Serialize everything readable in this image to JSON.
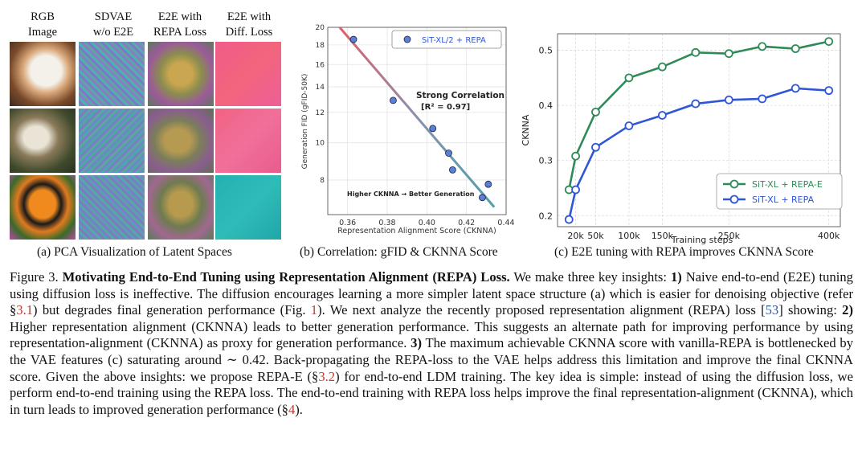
{
  "panel_a": {
    "headers": [
      {
        "line1": "RGB",
        "line2": "Image"
      },
      {
        "line1": "SDVAE",
        "line2": "w/o E2E"
      },
      {
        "line1": "E2E with",
        "line2": "REPA Loss"
      },
      {
        "line1": "E2E with",
        "line2": "Diff. Loss"
      }
    ],
    "caption": "(a) PCA Visualization of Latent Spaces"
  },
  "panel_b": {
    "caption": "(b) Correlation: gFID & CKNNA Score",
    "annotation_title": "Strong Correlation",
    "annotation_r2": "[R² = 0.97]",
    "annotation_bottom": "Higher CKNNA → Better Generation"
  },
  "panel_c": {
    "caption": "(c) E2E tuning with REPA improves CKNNA Score"
  },
  "chart_data": [
    {
      "type": "scatter",
      "xlabel": "Representation Alignment Score (CKNNA)",
      "ylabel": "Generation FID (gFID-50K)",
      "xlim": [
        0.35,
        0.44
      ],
      "ylim": [
        6.5,
        20
      ],
      "y_scale": "log",
      "x_ticks": [
        "0.36",
        "0.38",
        "0.40",
        "0.42",
        "0.44"
      ],
      "y_ticks": [
        "8",
        "10",
        "12",
        "14",
        "16",
        "18",
        "20"
      ],
      "series": [
        {
          "name": "SiT-XL/2 + REPA",
          "color": "#5b7fd6",
          "x": [
            0.363,
            0.383,
            0.403,
            0.411,
            0.413,
            0.428,
            0.431
          ],
          "y": [
            18.6,
            12.9,
            10.9,
            9.4,
            8.5,
            7.2,
            7.8
          ]
        }
      ],
      "fit_line": {
        "x": [
          0.356,
          0.434
        ],
        "y": [
          20.0,
          6.8
        ]
      },
      "legend": "top-right",
      "grid": true
    },
    {
      "type": "line",
      "xlabel": "Training steps",
      "ylabel": "CKNNA",
      "x": [
        10000,
        20000,
        30000,
        50000,
        100000,
        150000,
        200000,
        250000,
        300000,
        350000,
        400000
      ],
      "x_ticks": [
        "20k",
        "50k",
        "100k",
        "150k",
        "250k",
        "400k"
      ],
      "y_ticks": [
        "0.2",
        "0.3",
        "0.4",
        "0.5"
      ],
      "ylim": [
        0.18,
        0.53
      ],
      "series": [
        {
          "name": "SiT-XL + REPA-E",
          "color": "#2e8b57",
          "x": [
            10000,
            20000,
            50000,
            100000,
            150000,
            200000,
            250000,
            300000,
            350000,
            400000
          ],
          "values": [
            0.247,
            0.308,
            0.388,
            0.45,
            0.47,
            0.496,
            0.494,
            0.507,
            0.503,
            0.516
          ]
        },
        {
          "name": "SiT-XL + REPA",
          "color": "#2f56d6",
          "x": [
            10000,
            20000,
            50000,
            100000,
            150000,
            200000,
            250000,
            300000,
            350000,
            400000
          ],
          "values": [
            0.193,
            0.247,
            0.324,
            0.363,
            0.382,
            0.403,
            0.41,
            0.412,
            0.431,
            0.427
          ]
        }
      ],
      "legend": "bottom-right",
      "grid": true
    }
  ],
  "caption": {
    "fig": "Figure 3.",
    "title": "Motivating End-to-End Tuning using Representation Alignment (REPA) Loss.",
    "p1": "We make three key insights:",
    "i1": "1)",
    "p2": "Naive end-to-end (E2E) tuning using diffusion loss is ineffective. The diffusion encourages learning a more simpler latent space structure (a) which is easier for denoising objective (refer §",
    "r1": "3.1",
    "p3": ") but degrades final generation performance (Fig.",
    "r2": "1",
    "p4": "). We next analyze the recently proposed representation alignment (REPA) loss [",
    "r3": "53",
    "p5": "] showing:",
    "i2": "2)",
    "p6": "Higher representation alignment (CKNNA) leads to better generation performance. This suggests an alternate path for improving performance by using representation-alignment (CKNNA) as proxy for generation performance.",
    "i3": "3)",
    "p7": "The maximum achievable CKNNA score with vanilla-REPA is bottlenecked by the VAE features (c) saturating around ∼ 0.42. Back-propagating the REPA-loss to the VAE helps address this limitation and improve the final CKNNA score. Given the above insights: we propose REPA-E (§",
    "r4": "3.2",
    "p8": ") for end-to-end LDM training. The key idea is simple: instead of using the diffusion loss, we perform end-to-end training using the REPA loss. The end-to-end training with REPA loss helps improve the final representation-alignment (CKNNA), which in turn leads to improved generation performance (§",
    "r5": "4",
    "p9": ")."
  }
}
